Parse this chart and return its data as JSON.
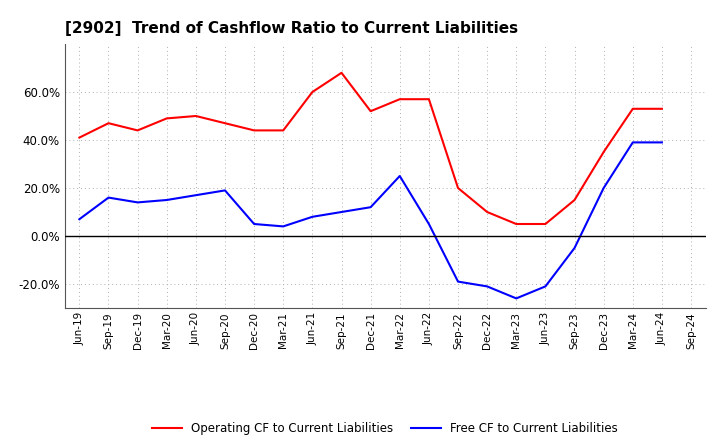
{
  "title": "[2902]  Trend of Cashflow Ratio to Current Liabilities",
  "x_labels": [
    "Jun-19",
    "Sep-19",
    "Dec-19",
    "Mar-20",
    "Jun-20",
    "Sep-20",
    "Dec-20",
    "Mar-21",
    "Jun-21",
    "Sep-21",
    "Dec-21",
    "Mar-22",
    "Jun-22",
    "Sep-22",
    "Dec-22",
    "Mar-23",
    "Jun-23",
    "Sep-23",
    "Dec-23",
    "Mar-24",
    "Jun-24",
    "Sep-24"
  ],
  "operating_cf": [
    0.41,
    0.47,
    0.44,
    0.49,
    0.5,
    0.47,
    0.44,
    0.44,
    0.6,
    0.68,
    0.52,
    0.57,
    0.57,
    0.2,
    0.1,
    0.05,
    0.05,
    0.15,
    0.35,
    0.53,
    0.53,
    null
  ],
  "free_cf": [
    0.07,
    0.16,
    0.14,
    0.15,
    0.17,
    0.19,
    0.05,
    0.04,
    0.08,
    0.1,
    0.12,
    0.25,
    0.05,
    -0.19,
    -0.21,
    -0.26,
    -0.21,
    -0.05,
    0.2,
    0.39,
    0.39,
    null
  ],
  "operating_color": "#ff0000",
  "free_color": "#0000ff",
  "ylim": [
    -0.3,
    0.8
  ],
  "yticks": [
    -0.2,
    0.0,
    0.2,
    0.4,
    0.6
  ],
  "background_color": "#ffffff",
  "grid_color": "#b0b0b0"
}
